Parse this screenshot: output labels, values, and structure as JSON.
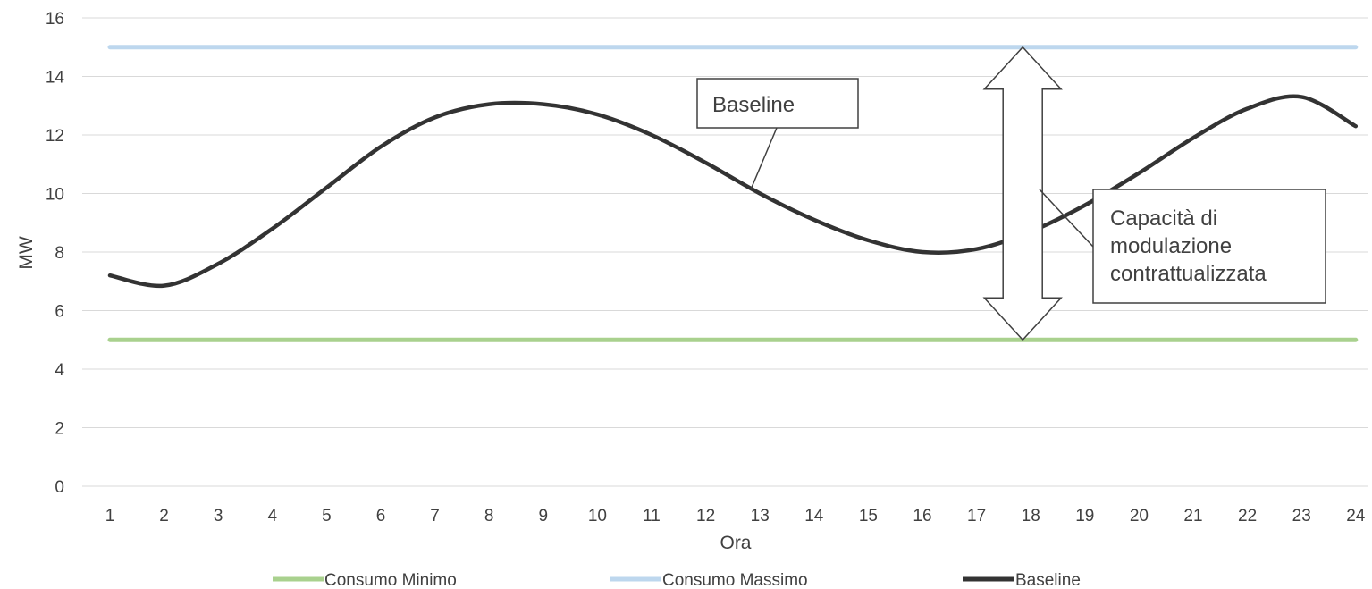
{
  "chart_data": {
    "type": "line",
    "x": [
      1,
      2,
      3,
      4,
      5,
      6,
      7,
      8,
      9,
      10,
      11,
      12,
      13,
      14,
      15,
      16,
      17,
      18,
      19,
      20,
      21,
      22,
      23,
      24
    ],
    "xlabel": "Ora",
    "ylabel": "MW",
    "ylim": [
      0,
      16
    ],
    "yticks": [
      0,
      2,
      4,
      6,
      8,
      10,
      12,
      14,
      16
    ],
    "grid": true,
    "legend_position": "bottom",
    "series": [
      {
        "name": "Consumo Minimo",
        "color": "#a9d18e",
        "values": [
          5,
          5,
          5,
          5,
          5,
          5,
          5,
          5,
          5,
          5,
          5,
          5,
          5,
          5,
          5,
          5,
          5,
          5,
          5,
          5,
          5,
          5,
          5,
          5
        ]
      },
      {
        "name": "Consumo Massimo",
        "color": "#bdd7ee",
        "values": [
          15,
          15,
          15,
          15,
          15,
          15,
          15,
          15,
          15,
          15,
          15,
          15,
          15,
          15,
          15,
          15,
          15,
          15,
          15,
          15,
          15,
          15,
          15,
          15
        ]
      },
      {
        "name": "Baseline",
        "color": "#333333",
        "values": [
          7.2,
          6.85,
          7.6,
          8.8,
          10.2,
          11.6,
          12.6,
          13.05,
          13.05,
          12.7,
          12.0,
          11.05,
          10.0,
          9.1,
          8.4,
          8.0,
          8.1,
          8.7,
          9.6,
          10.7,
          11.9,
          12.9,
          13.3,
          12.3
        ]
      }
    ],
    "annotations": {
      "baseline_label": "Baseline",
      "capacity_label_lines": [
        "Capacità di",
        "modulazione",
        "contrattualizzata"
      ],
      "capacity_arrow": {
        "x": 18,
        "from": 5,
        "to": 15
      }
    }
  }
}
